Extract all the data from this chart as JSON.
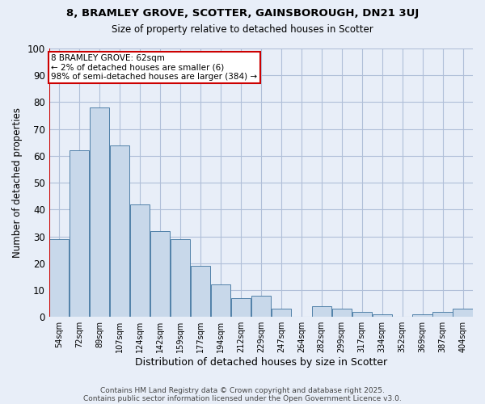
{
  "title1": "8, BRAMLEY GROVE, SCOTTER, GAINSBOROUGH, DN21 3UJ",
  "title2": "Size of property relative to detached houses in Scotter",
  "xlabel": "Distribution of detached houses by size in Scotter",
  "ylabel": "Number of detached properties",
  "bar_labels": [
    "54sqm",
    "72sqm",
    "89sqm",
    "107sqm",
    "124sqm",
    "142sqm",
    "159sqm",
    "177sqm",
    "194sqm",
    "212sqm",
    "229sqm",
    "247sqm",
    "264sqm",
    "282sqm",
    "299sqm",
    "317sqm",
    "334sqm",
    "352sqm",
    "369sqm",
    "387sqm",
    "404sqm"
  ],
  "bar_heights": [
    29,
    62,
    78,
    64,
    42,
    32,
    29,
    19,
    12,
    7,
    8,
    3,
    0,
    4,
    3,
    2,
    1,
    0,
    1,
    2,
    3
  ],
  "bar_color": "#c8d8ea",
  "bar_edge_color": "#5080a8",
  "background_color": "#e8eef8",
  "grid_color": "#b0bfd8",
  "vline_color": "#cc0000",
  "annotation_text": "8 BRAMLEY GROVE: 62sqm\n← 2% of detached houses are smaller (6)\n98% of semi-detached houses are larger (384) →",
  "annotation_box_facecolor": "#ffffff",
  "annotation_box_edgecolor": "#cc0000",
  "ylim": [
    0,
    100
  ],
  "footer1": "Contains HM Land Registry data © Crown copyright and database right 2025.",
  "footer2": "Contains public sector information licensed under the Open Government Licence v3.0."
}
